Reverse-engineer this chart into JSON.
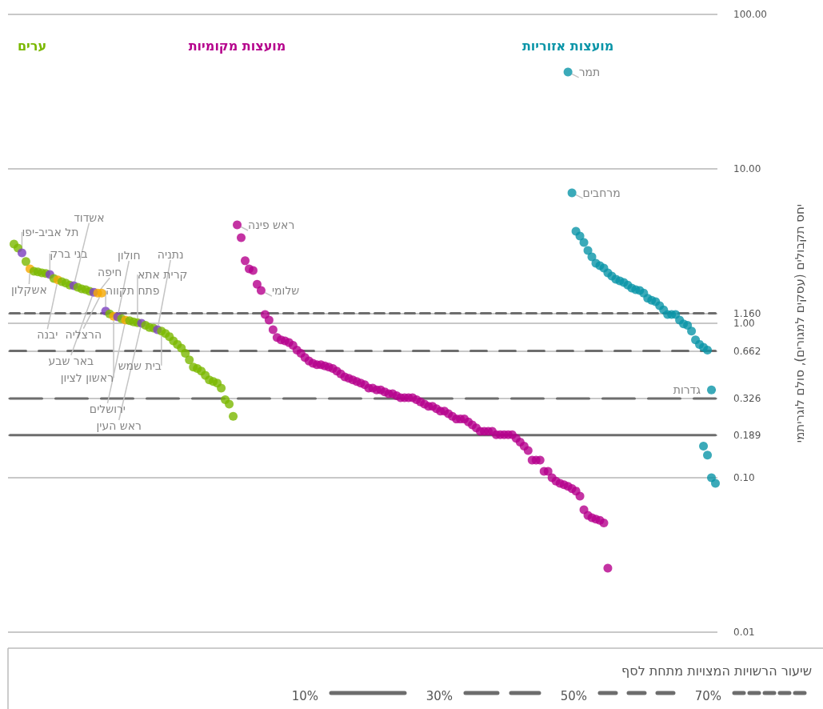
{
  "chart_data": {
    "type": "scatter",
    "ylabel": "יחס תקבולים (עסקים למגורים), סולם לוגריתמי",
    "log": "y",
    "grid": "y",
    "marker": "circle",
    "tick_labels": "y",
    "legend": "bottom",
    "legend_title": "שיעור הרשויות המצויות מתחת לסף",
    "ylim": [
      0.01,
      100
    ],
    "yticks": [
      {
        "value": 0.01,
        "label": "0.01"
      },
      {
        "value": 0.1,
        "label": "0.10"
      },
      0.189,
      0.326,
      0.662,
      {
        "value": 1,
        "label": "1.00"
      },
      {
        "value": 1.16,
        "label": "1.160"
      },
      {
        "value": 10,
        "label": "10.00"
      },
      {
        "value": 100,
        "label": "100.00"
      }
    ],
    "categories": [
      null,
      null,
      null,
      null,
      null,
      null,
      null,
      null,
      null,
      null,
      null,
      null,
      null,
      null,
      null,
      null,
      null,
      null,
      null,
      null,
      null,
      null,
      null,
      null,
      null,
      null,
      null,
      null,
      null,
      null,
      null,
      null,
      null,
      null,
      null,
      null,
      null,
      null,
      null,
      null,
      null,
      null,
      null,
      null,
      null,
      null,
      null,
      null,
      null,
      null,
      null,
      null,
      null,
      null,
      null,
      null,
      null,
      null,
      null,
      null,
      null,
      null,
      null,
      null,
      null,
      null,
      null,
      null,
      null,
      null,
      null,
      null,
      null,
      null,
      null,
      null,
      null,
      null,
      null,
      null,
      null,
      null,
      null,
      null,
      null,
      null,
      null,
      null,
      null,
      null,
      null,
      null,
      null,
      null,
      null,
      null,
      null,
      null,
      null,
      null,
      null,
      null,
      null,
      null,
      null,
      null,
      null,
      null,
      null,
      null,
      null,
      null,
      null,
      null,
      null,
      null,
      null,
      null,
      null,
      null,
      null,
      null,
      null,
      null,
      null,
      null,
      null,
      null,
      null,
      null,
      null,
      null,
      null,
      null,
      null,
      null,
      null,
      null,
      null,
      null,
      null,
      null,
      null,
      null,
      null,
      null,
      null,
      null,
      null,
      null,
      null,
      null,
      null,
      null,
      null,
      null,
      null,
      null,
      null,
      null,
      null,
      null,
      null,
      null,
      null,
      null,
      null,
      null,
      null,
      null,
      null,
      null,
      null,
      null,
      null,
      null,
      null,
      null
    ],
    "series": [
      {
        "name": "ערים",
        "values": [
          null,
          3.26,
          3.07,
          2.86,
          2.51,
          2.25,
          2.17,
          2.15,
          2.12,
          2.1,
          2.07,
          1.95,
          1.91,
          1.86,
          1.82,
          1.77,
          1.75,
          1.71,
          1.67,
          1.65,
          1.61,
          1.59,
          1.57,
          1.57,
          1.2,
          1.15,
          1.11,
          1.1,
          1.07,
          1.05,
          1.04,
          1.02,
          1.01,
          1.0,
          0.97,
          0.94,
          0.93,
          0.91,
          0.89,
          0.86,
          0.82,
          0.77,
          0.73,
          0.69,
          0.64,
          0.58,
          0.52,
          0.51,
          0.49,
          0.46,
          0.43,
          0.42,
          0.41,
          0.38,
          0.32,
          0.3,
          0.25,
          null,
          null,
          null,
          null,
          null,
          null,
          null,
          null,
          null,
          null,
          null,
          null,
          null,
          null,
          null,
          null,
          null,
          null,
          null,
          null,
          null,
          null,
          null,
          null,
          null,
          null,
          null,
          null,
          null,
          null,
          null,
          null,
          null,
          null,
          null,
          null,
          null,
          null,
          null,
          null,
          null,
          null,
          null,
          null,
          null,
          null,
          null,
          null,
          null,
          null,
          null,
          null,
          null,
          null,
          null,
          null,
          null,
          null,
          null,
          null,
          null,
          null,
          null,
          null,
          null,
          null,
          null,
          null,
          null,
          null,
          null,
          null,
          null,
          null,
          null,
          null,
          null,
          null,
          null,
          null,
          null,
          null,
          null,
          null,
          null,
          null,
          null,
          null,
          null,
          null,
          null,
          null,
          null,
          null,
          null,
          null,
          null,
          null,
          null,
          null,
          null,
          null,
          null,
          null,
          null,
          null,
          null,
          null,
          null,
          null,
          null,
          null,
          null,
          null,
          null,
          null,
          null,
          null,
          null,
          null,
          null
        ],
        "colors": [
          null,
          "#7ab800",
          "#7ab800",
          "#7b3fbe",
          "#7ab800",
          "#f5a800",
          "#7ab800",
          "#7ab800",
          "#7ab800",
          "#7ab800",
          "#7b3fbe",
          "#7ab800",
          "#f5a800",
          "#7ab800",
          "#7ab800",
          "#7ab800",
          "#7b3fbe",
          "#7ab800",
          "#7ab800",
          "#7ab800",
          "#7ab800",
          "#7b3fbe",
          "#f5a800",
          "#f5a800",
          "#7b3fbe",
          "#7ab800",
          "#f5a800",
          "#7b3fbe",
          "#7ab800",
          "#f5a800",
          "#7ab800",
          "#7ab800",
          "#7ab800",
          "#7b3fbe",
          "#7ab800",
          "#7ab800",
          "#7ab800",
          "#7b3fbe",
          "#7ab800",
          "#7ab800",
          "#7ab800",
          "#7ab800",
          "#7ab800",
          "#7ab800",
          "#7ab800",
          "#7ab800",
          "#7ab800",
          "#7ab800",
          "#7ab800",
          "#7ab800",
          "#7ab800",
          "#7ab800",
          "#7ab800",
          "#7ab800",
          "#7ab800",
          "#7ab800",
          "#7ab800",
          null,
          null,
          null,
          null,
          null,
          null,
          null,
          null,
          null,
          null,
          null,
          null,
          null,
          null,
          null,
          null,
          null,
          null,
          null,
          null,
          null,
          null,
          null,
          null,
          null,
          null,
          null,
          null,
          null,
          null,
          null,
          null,
          null,
          null,
          null,
          null,
          null,
          null,
          null,
          null,
          null,
          null,
          null,
          null,
          null,
          null,
          null,
          null,
          null,
          null,
          null,
          null,
          null,
          null,
          null,
          null,
          null,
          null,
          null,
          null,
          null,
          null,
          null,
          null,
          null,
          null,
          null,
          null,
          null,
          null,
          null,
          null,
          null,
          null,
          null,
          null,
          null,
          null,
          null,
          null,
          null,
          null,
          null,
          null,
          null,
          null,
          null,
          null,
          null,
          null,
          null,
          null,
          null,
          null,
          null,
          null,
          null,
          null,
          null,
          null,
          null,
          null,
          null,
          null,
          null,
          null,
          null,
          null,
          null,
          null,
          null,
          null,
          null,
          null,
          null,
          null,
          null,
          null,
          null,
          null,
          null
        ],
        "value_labels": [
          null,
          null,
          null,
          "תל אביב-יפו",
          null,
          "אשקלון",
          null,
          null,
          null,
          null,
          "בני ברק",
          null,
          "יבנה",
          null,
          null,
          null,
          "אשדוד",
          null,
          null,
          null,
          null,
          "באר שבע",
          "חיפה",
          "הרצליה",
          "פתח תקווה",
          null,
          "ראשון לציון",
          "חולון",
          null,
          "ירושלים",
          null,
          null,
          "קרית אתא",
          "ראש העין",
          null,
          null,
          null,
          "נתניה",
          "בית שמש",
          null,
          null,
          null,
          null,
          null,
          null,
          null,
          null,
          null,
          null,
          null,
          null,
          null,
          null,
          null,
          null,
          null,
          null,
          null,
          null,
          null,
          null,
          null,
          null,
          null,
          null,
          null,
          null,
          null,
          null,
          null,
          null,
          null,
          null,
          null,
          null,
          null,
          null,
          null,
          null,
          null,
          null,
          null,
          null,
          null,
          null,
          null,
          null,
          null,
          null,
          null,
          null,
          null,
          null,
          null,
          null,
          null,
          null,
          null,
          null,
          null,
          null,
          null,
          null,
          null,
          null,
          null,
          null,
          null,
          null,
          null,
          null,
          null,
          null,
          null,
          null,
          null,
          null,
          null,
          null,
          null,
          null,
          null,
          null,
          null,
          null,
          null,
          null,
          null,
          null,
          null,
          null,
          null,
          null,
          null,
          null,
          null,
          null,
          null,
          null,
          null,
          null,
          null,
          null,
          null,
          null,
          null,
          null,
          null,
          null,
          null,
          null,
          null,
          null,
          null,
          null,
          null,
          null,
          null,
          null,
          null,
          null,
          null,
          null,
          null,
          null,
          null,
          null,
          null,
          null,
          null,
          null,
          null,
          null,
          null,
          null,
          null,
          null,
          null
        ]
      },
      {
        "name": "מועצות מקומיות",
        "color": "#b5008c",
        "values": [
          null,
          null,
          null,
          null,
          null,
          null,
          null,
          null,
          null,
          null,
          null,
          null,
          null,
          null,
          null,
          null,
          null,
          null,
          null,
          null,
          null,
          null,
          null,
          null,
          null,
          null,
          null,
          null,
          null,
          null,
          null,
          null,
          null,
          null,
          null,
          null,
          null,
          null,
          null,
          null,
          null,
          null,
          null,
          null,
          null,
          null,
          null,
          null,
          null,
          null,
          null,
          null,
          null,
          null,
          null,
          null,
          null,
          4.34,
          3.58,
          2.54,
          2.25,
          2.2,
          1.79,
          1.63,
          1.14,
          1.05,
          0.91,
          0.81,
          0.78,
          0.77,
          0.75,
          0.72,
          0.67,
          0.64,
          0.6,
          0.57,
          0.55,
          0.54,
          0.54,
          0.53,
          0.52,
          0.51,
          0.49,
          0.47,
          0.45,
          0.44,
          0.43,
          0.42,
          0.41,
          0.4,
          0.38,
          0.38,
          0.37,
          0.37,
          0.36,
          0.35,
          0.35,
          0.34,
          0.33,
          0.33,
          0.33,
          0.33,
          0.32,
          0.31,
          0.3,
          0.29,
          0.29,
          0.28,
          0.27,
          0.27,
          0.26,
          0.25,
          0.24,
          0.24,
          0.24,
          0.23,
          0.22,
          0.21,
          0.2,
          0.2,
          0.2,
          0.2,
          0.19,
          0.19,
          0.19,
          0.19,
          0.19,
          0.18,
          0.17,
          0.16,
          0.15,
          0.13,
          0.13,
          0.13,
          0.11,
          0.11,
          0.1,
          0.095,
          0.092,
          0.09,
          0.088,
          0.085,
          0.082,
          0.076,
          0.062,
          0.057,
          0.055,
          0.054,
          0.053,
          0.051,
          0.026,
          null,
          null,
          null,
          null,
          null,
          null,
          null,
          null,
          null,
          null,
          null,
          null,
          null,
          null,
          null,
          null,
          null,
          null,
          null,
          null,
          null,
          null,
          null,
          null,
          null,
          null,
          null
        ],
        "value_labels": [
          null,
          null,
          null,
          null,
          null,
          null,
          null,
          null,
          null,
          null,
          null,
          null,
          null,
          null,
          null,
          null,
          null,
          null,
          null,
          null,
          null,
          null,
          null,
          null,
          null,
          null,
          null,
          null,
          null,
          null,
          null,
          null,
          null,
          null,
          null,
          null,
          null,
          null,
          null,
          null,
          null,
          null,
          null,
          null,
          null,
          null,
          null,
          null,
          null,
          null,
          null,
          null,
          null,
          null,
          null,
          null,
          null,
          "ראש פינה",
          null,
          null,
          null,
          null,
          null,
          "שלומי",
          null,
          null,
          null,
          null,
          null,
          null,
          null,
          null,
          null,
          null,
          null,
          null,
          null,
          null,
          null,
          null,
          null,
          null,
          null,
          null,
          null,
          null,
          null,
          null,
          null,
          null,
          null,
          null,
          null,
          null,
          null,
          null,
          null,
          null,
          null,
          null,
          null,
          null,
          null,
          null,
          null,
          null,
          null,
          null,
          null,
          null,
          null,
          null,
          null,
          null,
          null,
          null,
          null,
          null,
          null,
          null,
          null,
          null,
          null,
          null,
          null,
          null,
          null,
          null,
          null,
          null,
          null,
          null,
          null,
          null,
          null,
          null,
          null,
          null,
          null,
          null,
          null,
          null,
          null,
          null,
          null,
          null,
          null,
          null,
          null,
          null,
          null,
          null,
          null,
          null,
          null,
          null,
          null,
          null,
          null,
          null,
          null,
          null,
          null,
          null,
          null,
          null,
          null,
          null,
          null,
          null,
          null,
          null,
          null,
          null,
          null,
          null,
          null,
          null
        ]
      },
      {
        "name": "מועצות אזוריות",
        "color": "#0a95a8",
        "values": [
          null,
          null,
          null,
          null,
          null,
          null,
          null,
          null,
          null,
          null,
          null,
          null,
          null,
          null,
          null,
          null,
          null,
          null,
          null,
          null,
          null,
          null,
          null,
          null,
          null,
          null,
          null,
          null,
          null,
          null,
          null,
          null,
          null,
          null,
          null,
          null,
          null,
          null,
          null,
          null,
          null,
          null,
          null,
          null,
          null,
          null,
          null,
          null,
          null,
          null,
          null,
          null,
          null,
          null,
          null,
          null,
          null,
          null,
          null,
          null,
          null,
          null,
          null,
          null,
          null,
          null,
          null,
          null,
          null,
          null,
          null,
          null,
          null,
          null,
          null,
          null,
          null,
          null,
          null,
          null,
          null,
          null,
          null,
          null,
          null,
          null,
          null,
          null,
          null,
          null,
          null,
          null,
          null,
          null,
          null,
          null,
          null,
          null,
          null,
          null,
          null,
          null,
          null,
          null,
          null,
          null,
          null,
          null,
          null,
          null,
          null,
          null,
          null,
          null,
          null,
          null,
          null,
          null,
          null,
          null,
          null,
          null,
          null,
          null,
          null,
          null,
          null,
          null,
          null,
          null,
          null,
          null,
          null,
          null,
          null,
          null,
          null,
          null,
          null,
          null,
          42.4,
          7.0,
          3.94,
          3.67,
          3.34,
          2.96,
          2.69,
          2.45,
          2.36,
          2.28,
          2.12,
          2.02,
          1.93,
          1.88,
          1.84,
          1.77,
          1.69,
          1.65,
          1.63,
          1.57,
          1.45,
          1.41,
          1.38,
          1.3,
          1.22,
          1.14,
          1.14,
          1.14,
          1.05,
          0.99,
          0.97,
          0.89,
          0.78,
          0.73,
          0.7,
          0.67,
          0.37,
          null
        ],
        "value_labels": [
          null,
          null,
          null,
          null,
          null,
          null,
          null,
          null,
          null,
          null,
          null,
          null,
          null,
          null,
          null,
          null,
          null,
          null,
          null,
          null,
          null,
          null,
          null,
          null,
          null,
          null,
          null,
          null,
          null,
          null,
          null,
          null,
          null,
          null,
          null,
          null,
          null,
          null,
          null,
          null,
          null,
          null,
          null,
          null,
          null,
          null,
          null,
          null,
          null,
          null,
          null,
          null,
          null,
          null,
          null,
          null,
          null,
          null,
          null,
          null,
          null,
          null,
          null,
          null,
          null,
          null,
          null,
          null,
          null,
          null,
          null,
          null,
          null,
          null,
          null,
          null,
          null,
          null,
          null,
          null,
          null,
          null,
          null,
          null,
          null,
          null,
          null,
          null,
          null,
          null,
          null,
          null,
          null,
          null,
          null,
          null,
          null,
          null,
          null,
          null,
          null,
          null,
          null,
          null,
          null,
          null,
          null,
          null,
          null,
          null,
          null,
          null,
          null,
          null,
          null,
          null,
          null,
          null,
          null,
          null,
          null,
          null,
          null,
          null,
          null,
          null,
          null,
          null,
          null,
          null,
          null,
          null,
          null,
          null,
          null,
          null,
          null,
          null,
          null,
          null,
          "תמר",
          "מרחבים",
          null,
          null,
          null,
          null,
          null,
          null,
          null,
          null,
          null,
          null,
          null,
          null,
          null,
          null,
          null,
          null,
          null,
          null,
          null,
          null,
          null,
          null,
          null,
          null,
          null,
          null,
          null,
          null,
          null,
          null,
          null,
          null,
          null,
          null,
          "גדרות",
          null
        ]
      },
      {
        "color": "#0a95a8",
        "values": [
          null,
          null,
          null,
          null,
          null,
          null,
          null,
          null,
          null,
          null,
          null,
          null,
          null,
          null,
          null,
          null,
          null,
          null,
          null,
          null,
          null,
          null,
          null,
          null,
          null,
          null,
          null,
          null,
          null,
          null,
          null,
          null,
          null,
          null,
          null,
          null,
          null,
          null,
          null,
          null,
          null,
          null,
          null,
          null,
          null,
          null,
          null,
          null,
          null,
          null,
          null,
          null,
          null,
          null,
          null,
          null,
          null,
          null,
          null,
          null,
          null,
          null,
          null,
          null,
          null,
          null,
          null,
          null,
          null,
          null,
          null,
          null,
          null,
          null,
          null,
          null,
          null,
          null,
          null,
          null,
          null,
          null,
          null,
          null,
          null,
          null,
          null,
          null,
          null,
          null,
          null,
          null,
          null,
          null,
          null,
          null,
          null,
          null,
          null,
          null,
          null,
          null,
          null,
          null,
          null,
          null,
          null,
          null,
          null,
          null,
          null,
          null,
          null,
          null,
          null,
          null,
          null,
          null,
          null,
          null,
          null,
          null,
          null,
          null,
          null,
          null,
          null,
          null,
          null,
          null,
          null,
          null,
          null,
          null,
          null,
          null,
          null,
          null,
          null,
          null,
          null,
          null,
          null,
          null,
          null,
          null,
          null,
          null,
          null,
          null,
          null,
          null,
          null,
          null,
          null,
          null,
          null,
          null,
          null,
          null,
          null,
          null,
          null,
          null,
          null,
          null,
          null,
          null,
          null,
          null,
          null,
          null,
          null,
          null,
          0.16,
          0.14,
          0.1,
          0.092
        ]
      },
      {
        "name": "10%",
        "type": "line",
        "color": "#6d6d6d",
        "line_style": "solid",
        "marker": "none",
        "values": [
          0.189,
          null,
          null,
          null,
          null,
          null,
          null,
          null,
          null,
          null,
          null,
          null,
          null,
          null,
          null,
          null,
          null,
          null,
          null,
          null,
          null,
          null,
          null,
          null,
          null,
          null,
          null,
          null,
          null,
          null,
          null,
          null,
          null,
          null,
          null,
          null,
          null,
          null,
          null,
          null,
          null,
          null,
          null,
          null,
          null,
          null,
          null,
          null,
          null,
          null,
          null,
          null,
          null,
          null,
          null,
          null,
          null,
          null,
          null,
          null,
          null,
          null,
          null,
          null,
          null,
          null,
          null,
          null,
          null,
          null,
          null,
          null,
          null,
          null,
          null,
          null,
          null,
          null,
          null,
          null,
          null,
          null,
          null,
          null,
          null,
          null,
          null,
          null,
          null,
          null,
          null,
          null,
          null,
          null,
          null,
          null,
          null,
          null,
          null,
          null,
          null,
          null,
          null,
          null,
          null,
          null,
          null,
          null,
          null,
          null,
          null,
          null,
          null,
          null,
          null,
          null,
          null,
          null,
          null,
          null,
          null,
          null,
          null,
          null,
          null,
          null,
          null,
          null,
          null,
          null,
          null,
          null,
          null,
          null,
          null,
          null,
          null,
          null,
          null,
          null,
          null,
          null,
          null,
          null,
          null,
          null,
          null,
          null,
          null,
          null,
          null,
          null,
          null,
          null,
          null,
          null,
          null,
          null,
          null,
          null,
          null,
          null,
          null,
          null,
          null,
          null,
          null,
          null,
          null,
          null,
          null,
          null,
          null,
          null,
          null,
          null,
          null,
          0.189
        ]
      },
      {
        "name": "30%",
        "type": "line",
        "color": "#6d6d6d",
        "line_style": "dashed",
        "marker": "none",
        "values": [
          0.326,
          null,
          null,
          null,
          null,
          null,
          null,
          null,
          null,
          null,
          null,
          null,
          null,
          null,
          null,
          null,
          null,
          null,
          null,
          null,
          null,
          null,
          null,
          null,
          null,
          null,
          null,
          null,
          null,
          null,
          null,
          null,
          null,
          null,
          null,
          null,
          null,
          null,
          null,
          null,
          null,
          null,
          null,
          null,
          null,
          null,
          null,
          null,
          null,
          null,
          null,
          null,
          null,
          null,
          null,
          null,
          null,
          null,
          null,
          null,
          null,
          null,
          null,
          null,
          null,
          null,
          null,
          null,
          null,
          null,
          null,
          null,
          null,
          null,
          null,
          null,
          null,
          null,
          null,
          null,
          null,
          null,
          null,
          null,
          null,
          null,
          null,
          null,
          null,
          null,
          null,
          null,
          null,
          null,
          null,
          null,
          null,
          null,
          null,
          null,
          null,
          null,
          null,
          null,
          null,
          null,
          null,
          null,
          null,
          null,
          null,
          null,
          null,
          null,
          null,
          null,
          null,
          null,
          null,
          null,
          null,
          null,
          null,
          null,
          null,
          null,
          null,
          null,
          null,
          null,
          null,
          null,
          null,
          null,
          null,
          null,
          null,
          null,
          null,
          null,
          null,
          null,
          null,
          null,
          null,
          null,
          null,
          null,
          null,
          null,
          null,
          null,
          null,
          null,
          null,
          null,
          null,
          null,
          null,
          null,
          null,
          null,
          null,
          null,
          null,
          null,
          null,
          null,
          null,
          null,
          null,
          null,
          null,
          null,
          null,
          null,
          null,
          0.326
        ]
      },
      {
        "name": "50%",
        "type": "line",
        "color": "#6d6d6d",
        "line_style": "dashed",
        "marker": "none",
        "values": [
          0.662,
          null,
          null,
          null,
          null,
          null,
          null,
          null,
          null,
          null,
          null,
          null,
          null,
          null,
          null,
          null,
          null,
          null,
          null,
          null,
          null,
          null,
          null,
          null,
          null,
          null,
          null,
          null,
          null,
          null,
          null,
          null,
          null,
          null,
          null,
          null,
          null,
          null,
          null,
          null,
          null,
          null,
          null,
          null,
          null,
          null,
          null,
          null,
          null,
          null,
          null,
          null,
          null,
          null,
          null,
          null,
          null,
          null,
          null,
          null,
          null,
          null,
          null,
          null,
          null,
          null,
          null,
          null,
          null,
          null,
          null,
          null,
          null,
          null,
          null,
          null,
          null,
          null,
          null,
          null,
          null,
          null,
          null,
          null,
          null,
          null,
          null,
          null,
          null,
          null,
          null,
          null,
          null,
          null,
          null,
          null,
          null,
          null,
          null,
          null,
          null,
          null,
          null,
          null,
          null,
          null,
          null,
          null,
          null,
          null,
          null,
          null,
          null,
          null,
          null,
          null,
          null,
          null,
          null,
          null,
          null,
          null,
          null,
          null,
          null,
          null,
          null,
          null,
          null,
          null,
          null,
          null,
          null,
          null,
          null,
          null,
          null,
          null,
          null,
          null,
          null,
          null,
          null,
          null,
          null,
          null,
          null,
          null,
          null,
          null,
          null,
          null,
          null,
          null,
          null,
          null,
          null,
          null,
          null,
          null,
          null,
          null,
          null,
          null,
          null,
          null,
          null,
          null,
          null,
          null,
          null,
          null,
          null,
          null,
          null,
          null,
          null,
          0.662
        ]
      },
      {
        "name": "70%",
        "type": "line",
        "color": "#6d6d6d",
        "line_style": "dotted",
        "marker": "none",
        "values": [
          1.16,
          null,
          null,
          null,
          null,
          null,
          null,
          null,
          null,
          null,
          null,
          null,
          null,
          null,
          null,
          null,
          null,
          null,
          null,
          null,
          null,
          null,
          null,
          null,
          null,
          null,
          null,
          null,
          null,
          null,
          null,
          null,
          null,
          null,
          null,
          null,
          null,
          null,
          null,
          null,
          null,
          null,
          null,
          null,
          null,
          null,
          null,
          null,
          null,
          null,
          null,
          null,
          null,
          null,
          null,
          null,
          null,
          null,
          null,
          null,
          null,
          null,
          null,
          null,
          null,
          null,
          null,
          null,
          null,
          null,
          null,
          null,
          null,
          null,
          null,
          null,
          null,
          null,
          null,
          null,
          null,
          null,
          null,
          null,
          null,
          null,
          null,
          null,
          null,
          null,
          null,
          null,
          null,
          null,
          null,
          null,
          null,
          null,
          null,
          null,
          null,
          null,
          null,
          null,
          null,
          null,
          null,
          null,
          null,
          null,
          null,
          null,
          null,
          null,
          null,
          null,
          null,
          null,
          null,
          null,
          null,
          null,
          null,
          null,
          null,
          null,
          null,
          null,
          null,
          null,
          null,
          null,
          null,
          null,
          null,
          null,
          null,
          null,
          null,
          null,
          null,
          null,
          null,
          null,
          null,
          null,
          null,
          null,
          null,
          null,
          null,
          null,
          null,
          null,
          null,
          null,
          null,
          null,
          null,
          null,
          null,
          null,
          null,
          null,
          null,
          null,
          null,
          null,
          null,
          null,
          null,
          null,
          null,
          null,
          null,
          null,
          null,
          1.16
        ]
      }
    ]
  }
}
